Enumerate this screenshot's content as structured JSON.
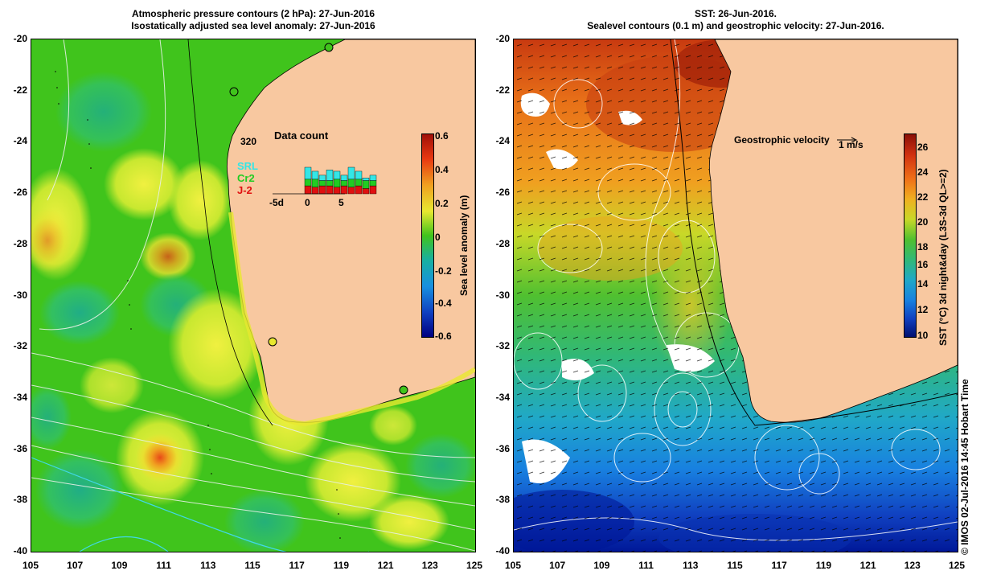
{
  "left_panel": {
    "title_line1": "Atmospheric pressure contours (2 hPa): 27-Jun-2016",
    "title_line2": "Isostatically adjusted sea level anomaly: 27-Jun-2016",
    "colorbar_label": "Sea level anomaly (m)",
    "colorbar_ticks": [
      "0.6",
      "0.4",
      "0.2",
      "0",
      "-0.2",
      "-0.4",
      "-0.6"
    ],
    "inset": {
      "title": "Data count",
      "max_count": "320",
      "legend": [
        {
          "label": "SRL",
          "color": "#33e6e6"
        },
        {
          "label": "Cr2",
          "color": "#22cc22"
        },
        {
          "label": "J-2",
          "color": "#e01010"
        }
      ],
      "x_ticks": [
        "-5d",
        "0",
        "5"
      ],
      "bars": [
        {
          "srl": 0.45,
          "cr2": 0.25,
          "j2": 0.3
        },
        {
          "srl": 0.3,
          "cr2": 0.3,
          "j2": 0.25
        },
        {
          "srl": 0.2,
          "cr2": 0.2,
          "j2": 0.3
        },
        {
          "srl": 0.4,
          "cr2": 0.2,
          "j2": 0.3
        },
        {
          "srl": 0.3,
          "cr2": 0.3,
          "j2": 0.25
        },
        {
          "srl": 0.2,
          "cr2": 0.2,
          "j2": 0.3
        },
        {
          "srl": 0.45,
          "cr2": 0.3,
          "j2": 0.25
        },
        {
          "srl": 0.3,
          "cr2": 0.25,
          "j2": 0.3
        },
        {
          "srl": 0.1,
          "cr2": 0.3,
          "j2": 0.2
        },
        {
          "srl": 0.2,
          "cr2": 0.2,
          "j2": 0.3
        }
      ]
    }
  },
  "right_panel": {
    "title_line1": "SST: 26-Jun-2016.",
    "title_line2": "Sealevel contours (0.1 m) and geostrophic velocity: 27-Jun-2016.",
    "velocity_label": "Geostrophic velocity",
    "velocity_scale": "1 m/s",
    "colorbar_label": "SST (°C) 3d night&day (L3S-3d QL>=2)",
    "colorbar_ticks": [
      "26",
      "24",
      "22",
      "20",
      "18",
      "16",
      "14",
      "12",
      "10"
    ]
  },
  "axes": {
    "lat_ticks": [
      "-20",
      "-22",
      "-24",
      "-26",
      "-28",
      "-30",
      "-32",
      "-34",
      "-36",
      "-38",
      "-40"
    ],
    "lon_ticks": [
      "105",
      "107",
      "109",
      "111",
      "113",
      "115",
      "117",
      "119",
      "121",
      "123",
      "125"
    ]
  },
  "credit": "© IMOS 02-Jul-2016 14:45 Hobart Time",
  "colors": {
    "land": "#f8c8a0",
    "ocean_base": "#44c81e",
    "anomaly_pos": "#e8e826",
    "anomaly_neg": "#20b0a0"
  }
}
